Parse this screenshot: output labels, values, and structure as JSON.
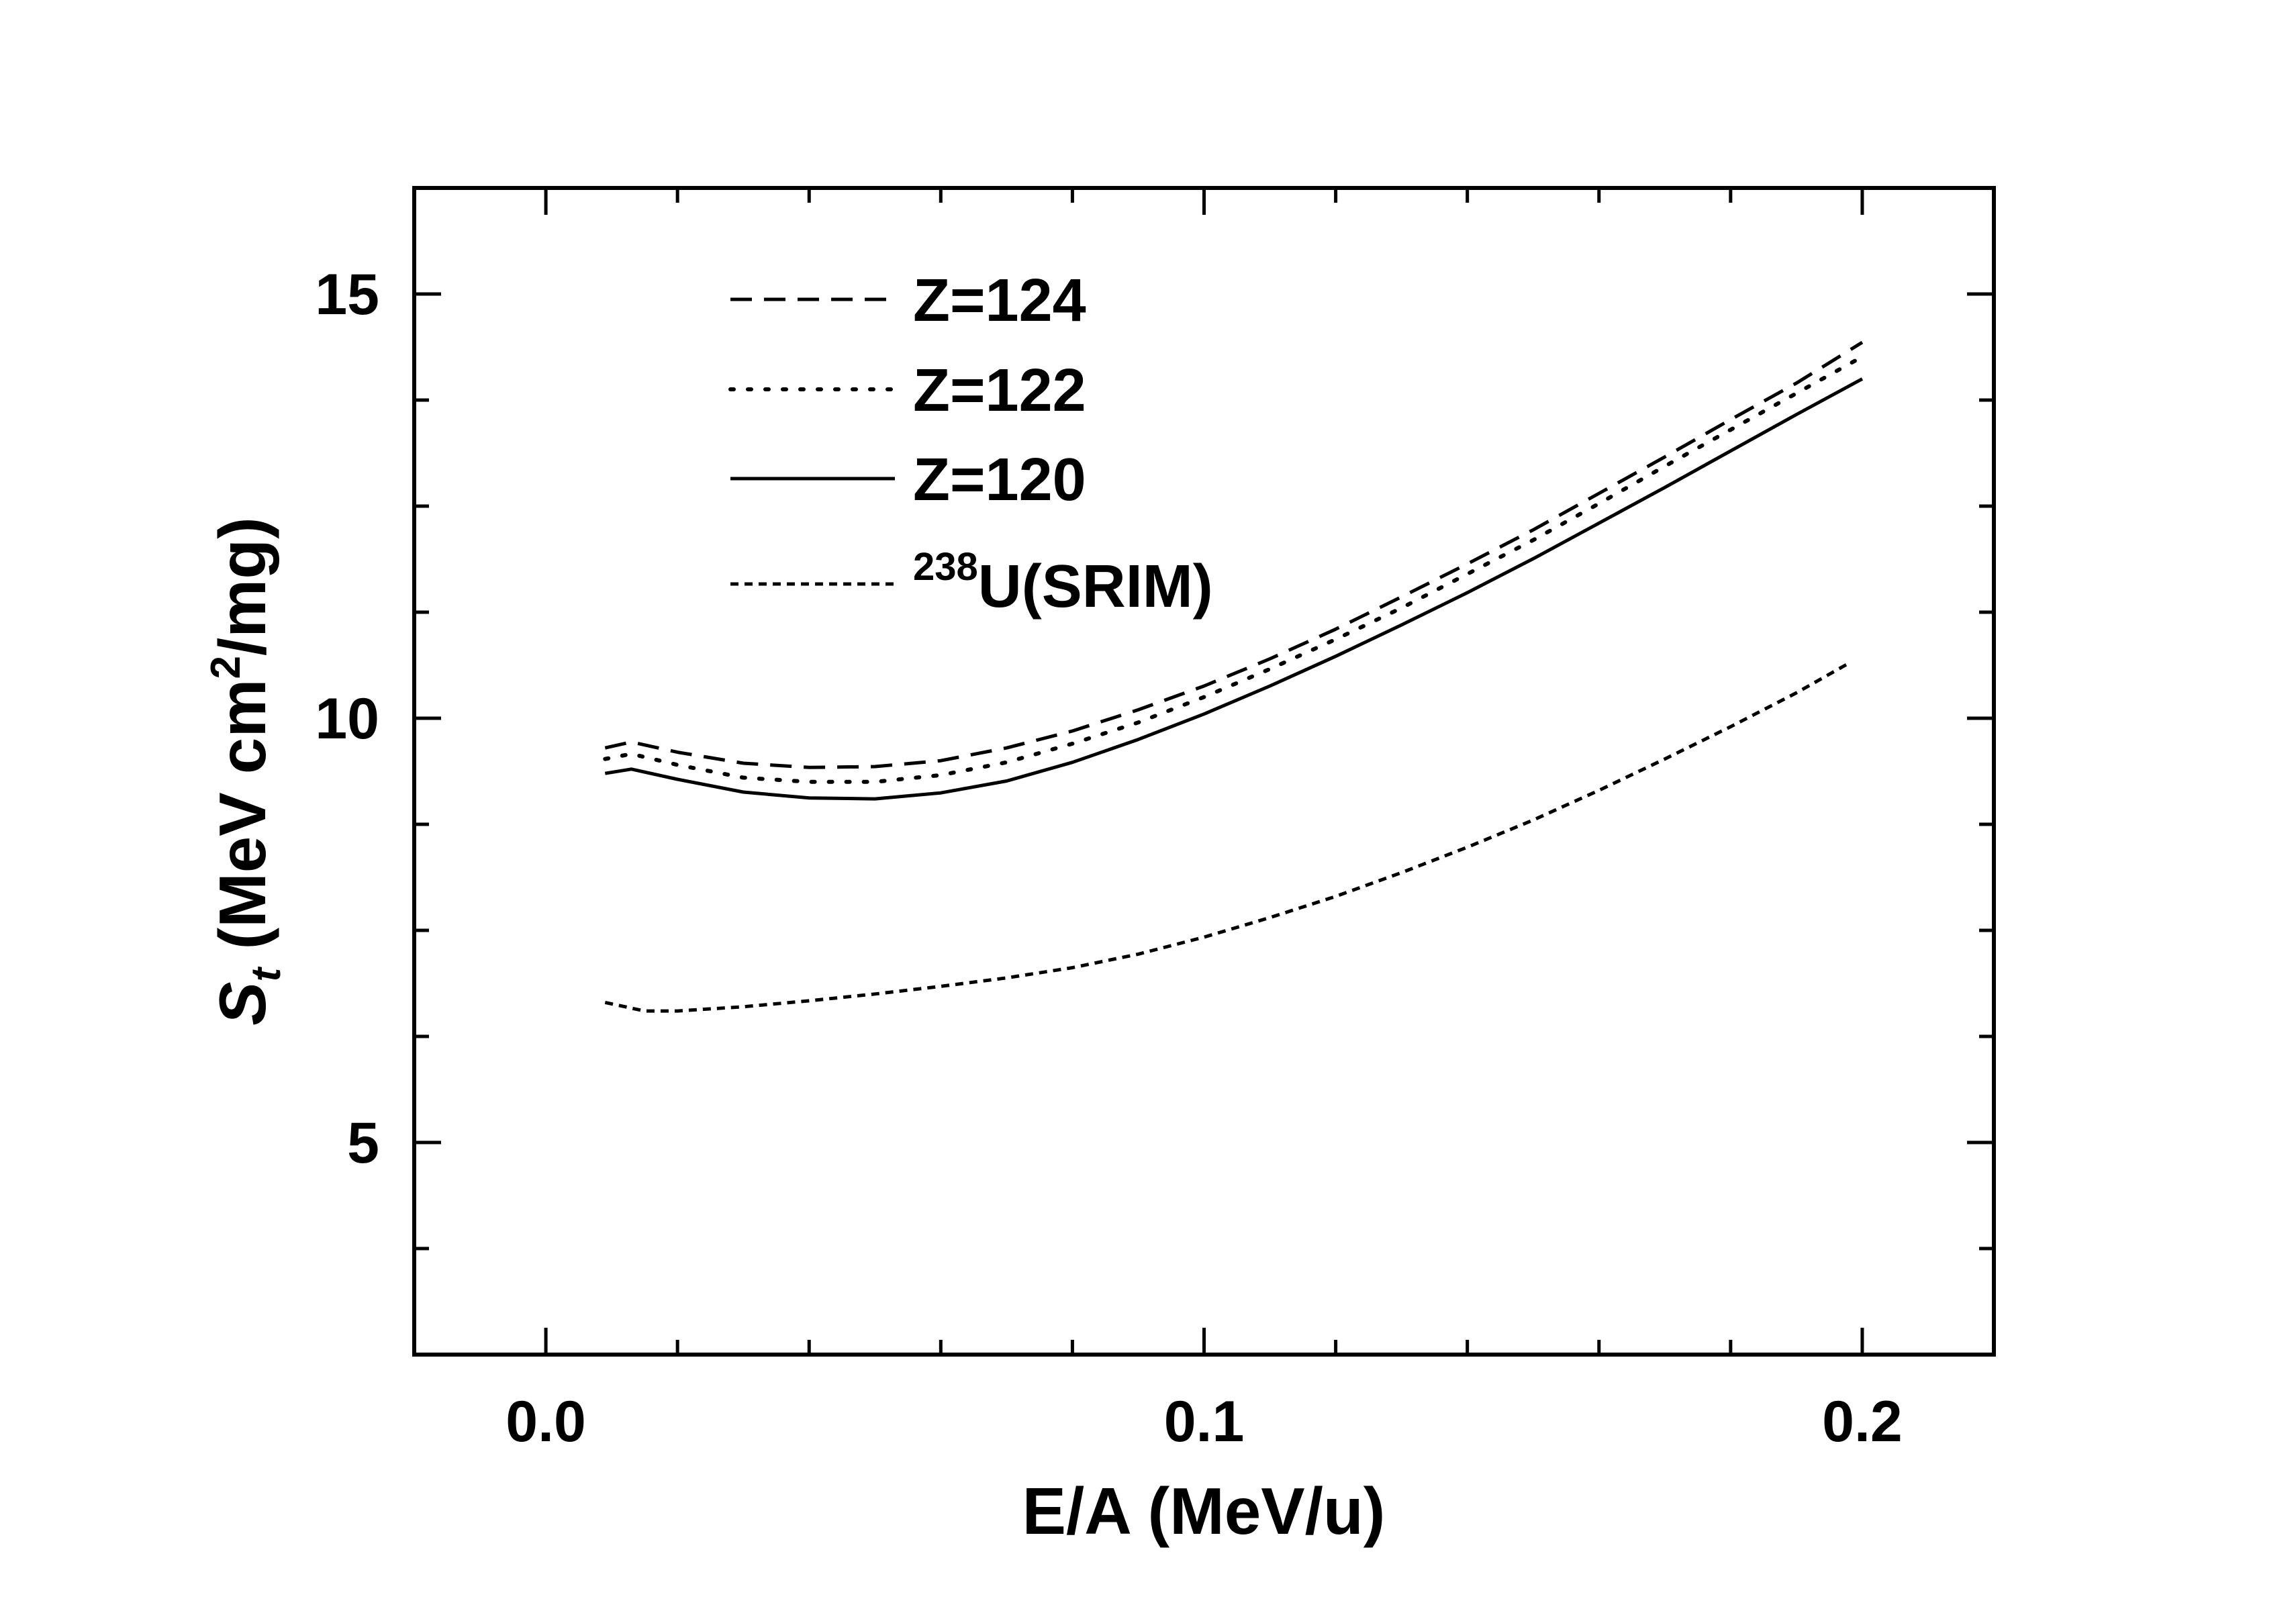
{
  "chart_data": {
    "type": "line",
    "title": "",
    "xlabel": "E/A (MeV/u)",
    "ylabel": {
      "symbol": "S",
      "subscript": "t",
      "text_before_sup": " (MeV cm",
      "superscript": "2",
      "text_after_sup": "/mg)"
    },
    "xlim": [
      -0.02,
      0.22
    ],
    "ylim": [
      2.5,
      16.25
    ],
    "x_ticks": [
      {
        "value": 0.0,
        "label": "0.0"
      },
      {
        "value": 0.1,
        "label": "0.1"
      },
      {
        "value": 0.2,
        "label": "0.2"
      }
    ],
    "x_minor_ticks": [
      0.02,
      0.04,
      0.06,
      0.08,
      0.12,
      0.14,
      0.16,
      0.18
    ],
    "y_ticks": [
      {
        "value": 5,
        "label": "5"
      },
      {
        "value": 10,
        "label": "10"
      },
      {
        "value": 15,
        "label": "15"
      }
    ],
    "y_minor_ticks": [
      3.75,
      6.25,
      7.5,
      8.75,
      11.25,
      12.5,
      13.75
    ],
    "legend_position": "top-left",
    "series": [
      {
        "name": "Z=124",
        "legend_label": "Z=124",
        "dash": "dashed",
        "x": [
          0.009,
          0.013,
          0.02,
          0.03,
          0.04,
          0.05,
          0.06,
          0.07,
          0.08,
          0.09,
          0.1,
          0.11,
          0.12,
          0.13,
          0.14,
          0.15,
          0.16,
          0.17,
          0.18,
          0.19,
          0.2
        ],
        "y": [
          9.65,
          9.72,
          9.6,
          9.47,
          9.42,
          9.43,
          9.5,
          9.65,
          9.85,
          10.1,
          10.38,
          10.7,
          11.05,
          11.43,
          11.82,
          12.22,
          12.65,
          13.08,
          13.52,
          13.95,
          14.43
        ]
      },
      {
        "name": "Z=122",
        "legend_label": "Z=122",
        "dash": "dotted",
        "x": [
          0.009,
          0.013,
          0.02,
          0.03,
          0.04,
          0.05,
          0.06,
          0.07,
          0.08,
          0.09,
          0.1,
          0.11,
          0.12,
          0.13,
          0.14,
          0.15,
          0.16,
          0.17,
          0.18,
          0.19,
          0.2
        ],
        "y": [
          9.52,
          9.58,
          9.45,
          9.3,
          9.25,
          9.25,
          9.33,
          9.48,
          9.7,
          9.95,
          10.25,
          10.58,
          10.93,
          11.3,
          11.7,
          12.1,
          12.53,
          12.97,
          13.4,
          13.83,
          14.26
        ]
      },
      {
        "name": "Z=120",
        "legend_label": "Z=120",
        "dash": "solid",
        "x": [
          0.009,
          0.013,
          0.02,
          0.03,
          0.04,
          0.05,
          0.06,
          0.07,
          0.08,
          0.09,
          0.1,
          0.11,
          0.12,
          0.13,
          0.14,
          0.15,
          0.16,
          0.17,
          0.18,
          0.19,
          0.2
        ],
        "y": [
          9.35,
          9.4,
          9.28,
          9.13,
          9.06,
          9.05,
          9.12,
          9.26,
          9.48,
          9.75,
          10.05,
          10.38,
          10.73,
          11.1,
          11.48,
          11.88,
          12.3,
          12.72,
          13.15,
          13.58,
          14.0
        ]
      },
      {
        "name": "238U(SRIM)",
        "legend_label": "U(SRIM)",
        "legend_superscript": "238",
        "dash": "short-dashed",
        "x": [
          0.009,
          0.015,
          0.02,
          0.03,
          0.04,
          0.05,
          0.06,
          0.07,
          0.08,
          0.09,
          0.1,
          0.11,
          0.12,
          0.13,
          0.14,
          0.15,
          0.16,
          0.17,
          0.18,
          0.19,
          0.198
        ],
        "y": [
          6.65,
          6.55,
          6.55,
          6.6,
          6.67,
          6.75,
          6.84,
          6.94,
          7.06,
          7.22,
          7.42,
          7.65,
          7.9,
          8.18,
          8.48,
          8.8,
          9.15,
          9.52,
          9.9,
          10.3,
          10.65
        ]
      }
    ]
  },
  "colors": {
    "axis": "#000000",
    "lines": "#000000",
    "background": "#ffffff"
  }
}
